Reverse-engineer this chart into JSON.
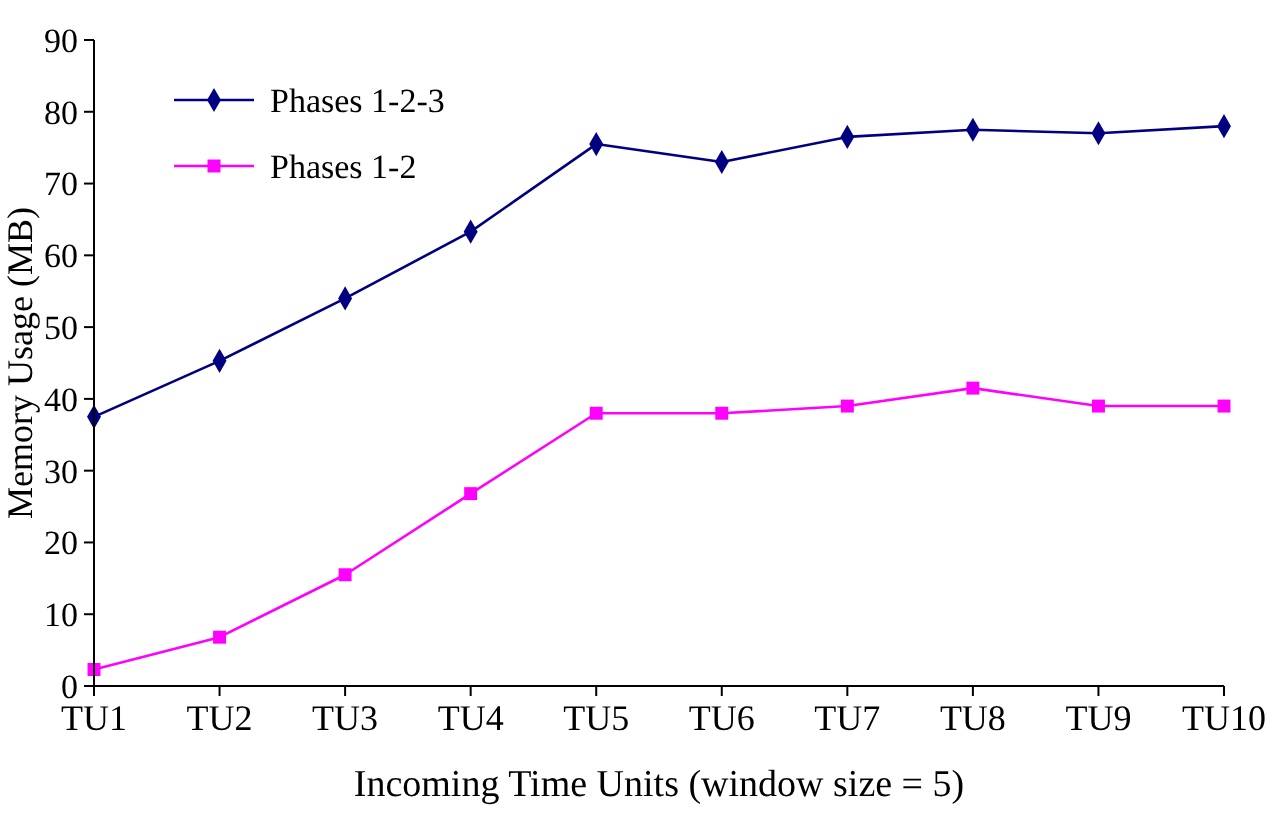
{
  "chart_data": {
    "type": "line",
    "xlabel": "Incoming Time Units (window size = 5)",
    "ylabel": "Memory Usage (MB)",
    "categories": [
      "TU1",
      "TU2",
      "TU3",
      "TU4",
      "TU5",
      "TU6",
      "TU7",
      "TU8",
      "TU9",
      "TU10"
    ],
    "series": [
      {
        "name": "Phases 1-2-3",
        "color": "#000080",
        "marker": "diamond",
        "values": [
          37.5,
          45.3,
          54,
          63.3,
          75.5,
          73,
          76.5,
          77.5,
          77,
          78
        ]
      },
      {
        "name": "Phases 1-2",
        "color": "#ff00ff",
        "marker": "square",
        "values": [
          2.3,
          6.8,
          15.5,
          26.8,
          38,
          38,
          39,
          41.5,
          39,
          39
        ]
      }
    ],
    "ylim": [
      0,
      90
    ],
    "yticks": [
      0,
      10,
      20,
      30,
      40,
      50,
      60,
      70,
      80,
      90
    ],
    "legend": "top left",
    "grid": false,
    "line_style": "solid"
  }
}
